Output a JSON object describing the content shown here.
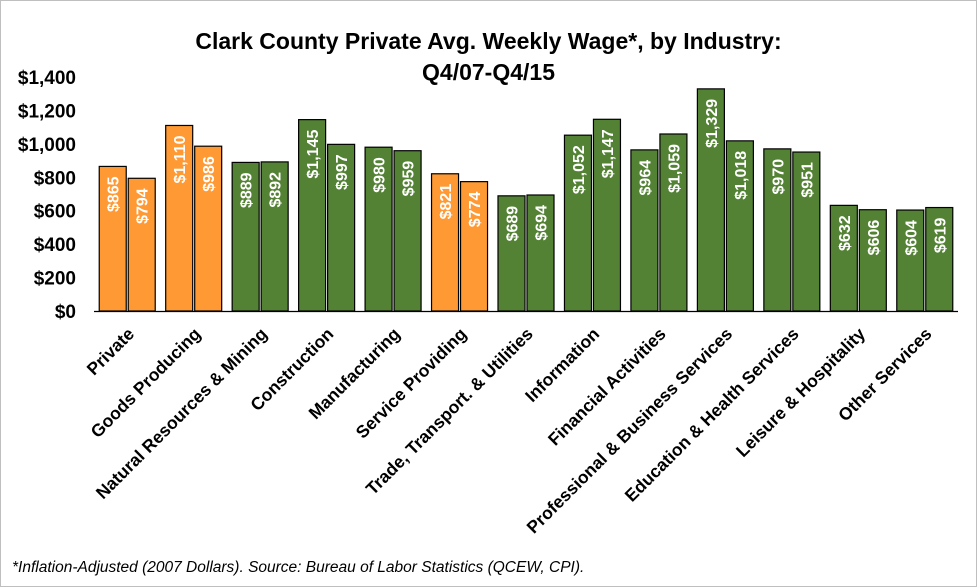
{
  "chart_data": {
    "type": "bar",
    "title": "Clark County Private Avg. Weekly Wage*, by Industry:",
    "subtitle": "Q4/07-Q4/15",
    "footnote": "*Inflation-Adjusted (2007 Dollars). Source: Bureau of Labor Statistics (QCEW, CPI).",
    "categories": [
      "Private",
      "Goods Producing",
      "Natural Resources & Mining",
      "Construction",
      "Manufacturing",
      "Service Providing",
      "Trade, Transport. & Utilities",
      "Information",
      "Financial Activities",
      "Professional & Business Services",
      "Education & Health Services",
      "Leisure & Hospitality",
      "Other Services"
    ],
    "series": [
      {
        "values": [
          865,
          1110,
          889,
          1145,
          980,
          821,
          689,
          1052,
          964,
          1329,
          970,
          632,
          604
        ]
      },
      {
        "values": [
          794,
          986,
          892,
          997,
          959,
          774,
          694,
          1147,
          1059,
          1018,
          951,
          606,
          619
        ]
      }
    ],
    "data_labels": [
      [
        "$865",
        "$1,110",
        "$889",
        "$1,145",
        "$980",
        "$821",
        "$689",
        "$1,052",
        "$964",
        "$1,329",
        "$970",
        "$632",
        "$604"
      ],
      [
        "$794",
        "$986",
        "$892",
        "$997",
        "$959",
        "$774",
        "$694",
        "$1,147",
        "$1,059",
        "$1,018",
        "$951",
        "$606",
        "$619"
      ]
    ],
    "bar_colors": [
      "#FF9933",
      "#FF9933",
      "#548235",
      "#548235",
      "#548235",
      "#FF9933",
      "#548235",
      "#548235",
      "#548235",
      "#548235",
      "#548235",
      "#548235",
      "#548235"
    ],
    "bar_border_color": "#000000",
    "ylim": [
      0,
      1400
    ],
    "yticks": [
      0,
      200,
      400,
      600,
      800,
      1000,
      1200,
      1400
    ],
    "ytick_labels": [
      "$0",
      "$200",
      "$400",
      "$600",
      "$800",
      "$1,000",
      "$1,200",
      "$1,400"
    ],
    "grid": false,
    "legend": "none"
  }
}
